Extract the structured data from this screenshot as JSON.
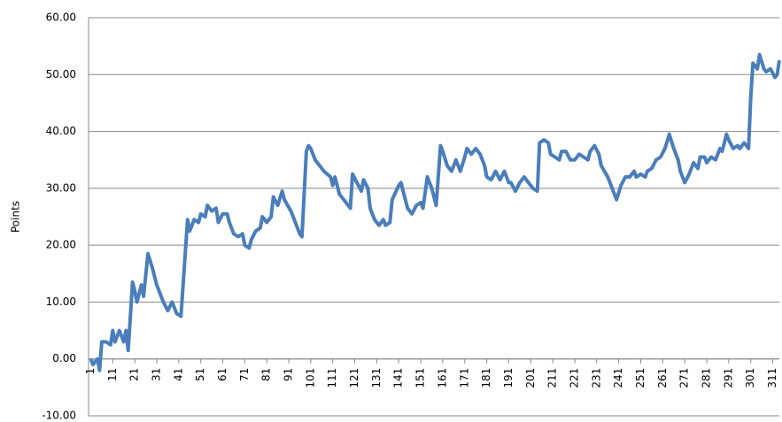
{
  "chart_data": {
    "type": "line",
    "y_label": "Points",
    "x": [
      1,
      2,
      4,
      5,
      6,
      8,
      10,
      11,
      12,
      14,
      16,
      17,
      18,
      20,
      21,
      22,
      24,
      25,
      27,
      29,
      31,
      34,
      36,
      38,
      40,
      42,
      45,
      46,
      48,
      50,
      51,
      53,
      54,
      56,
      58,
      59,
      61,
      63,
      64,
      66,
      68,
      70,
      71,
      73,
      74,
      76,
      78,
      79,
      81,
      83,
      84,
      86,
      88,
      89,
      92,
      94,
      96,
      97,
      99,
      100,
      101,
      103,
      105,
      107,
      110,
      111,
      112,
      114,
      116,
      118,
      119,
      120,
      122,
      124,
      125,
      127,
      128,
      130,
      132,
      134,
      135,
      137,
      138,
      141,
      142,
      144,
      145,
      147,
      149,
      151,
      152,
      154,
      156,
      158,
      160,
      161,
      163,
      165,
      167,
      169,
      171,
      172,
      174,
      176,
      178,
      180,
      181,
      183,
      185,
      187,
      189,
      191,
      192,
      194,
      196,
      198,
      200,
      202,
      204,
      205,
      207,
      209,
      210,
      212,
      214,
      215,
      217,
      219,
      221,
      223,
      225,
      227,
      228,
      230,
      232,
      233,
      236,
      238,
      240,
      242,
      244,
      246,
      248,
      249,
      251,
      253,
      254,
      256,
      258,
      260,
      262,
      264,
      266,
      268,
      269,
      271,
      273,
      275,
      277,
      278,
      280,
      281,
      283,
      285,
      287,
      288,
      290,
      291,
      293,
      295,
      296,
      298,
      300,
      301,
      302,
      304,
      305,
      307,
      308,
      310,
      312,
      313,
      314
    ],
    "series": [
      {
        "name": "Points",
        "color": "#4a7ebb",
        "values": [
          0,
          -1,
          0,
          -2,
          3,
          3,
          2.5,
          5,
          3,
          5,
          3,
          5,
          1.5,
          13.5,
          12,
          10,
          13,
          11,
          18.5,
          16,
          13,
          10,
          8.5,
          10,
          8,
          7.5,
          24.5,
          22.5,
          24.5,
          24,
          25.5,
          25,
          27,
          26,
          26.5,
          24,
          25.5,
          25.5,
          24,
          22,
          21.5,
          22,
          20,
          19.5,
          21,
          22.5,
          23,
          25,
          24,
          25,
          28.5,
          27,
          29.5,
          28,
          26,
          24,
          22,
          21.5,
          36.5,
          37.5,
          37,
          35,
          34,
          33,
          32,
          30.5,
          32,
          29,
          28,
          27,
          26.5,
          32.5,
          31,
          29.5,
          31.5,
          30,
          26.5,
          24.5,
          23.5,
          24.5,
          23.5,
          24,
          28,
          30.5,
          31,
          28,
          26.5,
          25.5,
          27,
          27.5,
          26.5,
          32,
          30,
          27,
          37.5,
          36.5,
          34,
          33,
          35,
          33,
          35.5,
          37,
          36,
          37,
          36,
          34,
          32,
          31.5,
          33,
          31.5,
          33,
          31,
          31,
          29.5,
          31,
          32,
          31,
          30,
          29.5,
          38,
          38.5,
          38,
          36,
          35.5,
          35,
          36.5,
          36.5,
          35,
          35,
          36,
          35.5,
          35,
          36.5,
          37.5,
          36,
          34,
          32,
          30,
          28,
          30.5,
          32,
          32,
          33,
          32,
          32.5,
          32,
          33,
          33.5,
          35,
          35.5,
          37,
          39.5,
          37,
          35,
          33,
          31,
          32.5,
          34.5,
          33.5,
          35.5,
          35.5,
          34.5,
          35.5,
          35,
          37,
          36.5,
          39.5,
          38.5,
          37,
          37.5,
          37,
          38,
          37,
          46,
          52,
          51,
          53.5,
          51,
          50.5,
          51,
          49.5,
          50,
          52.5
        ]
      }
    ],
    "xlim": [
      0,
      314
    ],
    "xticks": [
      1,
      11,
      21,
      31,
      41,
      51,
      61,
      71,
      81,
      91,
      101,
      111,
      121,
      131,
      141,
      151,
      161,
      171,
      181,
      191,
      201,
      211,
      221,
      231,
      241,
      251,
      261,
      271,
      281,
      291,
      301,
      311
    ],
    "ylim": [
      -10,
      60
    ],
    "yticks": [
      {
        "value": -10,
        "label": "-10.00"
      },
      {
        "value": 0,
        "label": "0.00"
      },
      {
        "value": 10,
        "label": "10.00"
      },
      {
        "value": 20,
        "label": "20.00"
      },
      {
        "value": 30,
        "label": "30.00"
      },
      {
        "value": 40,
        "label": "40.00"
      },
      {
        "value": 50,
        "label": "50.00"
      },
      {
        "value": 60,
        "label": "60.00"
      }
    ],
    "grid": true
  }
}
